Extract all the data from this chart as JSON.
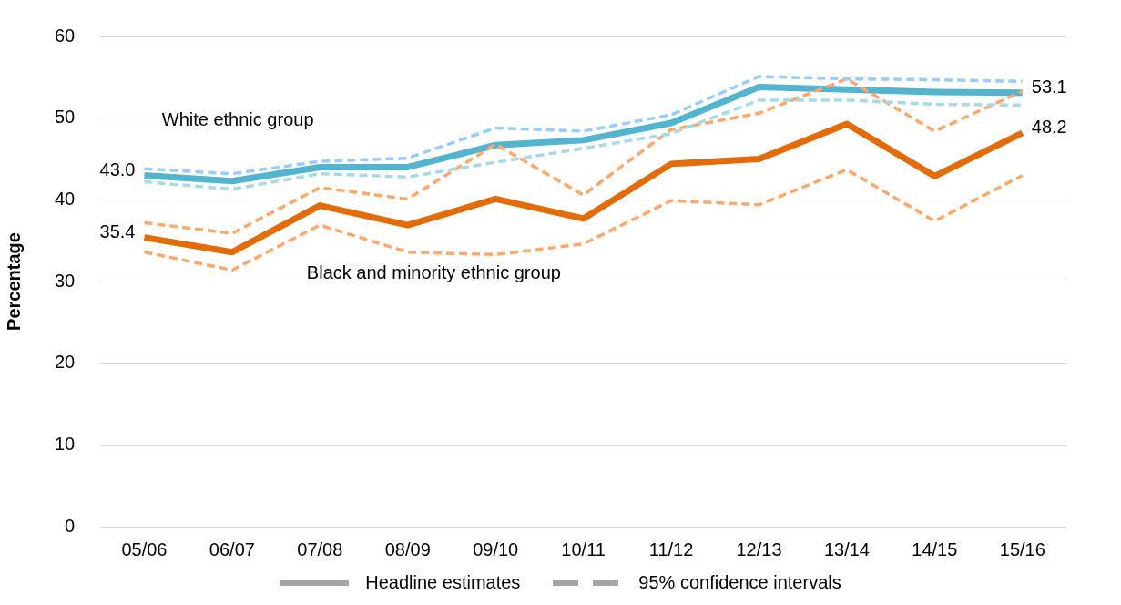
{
  "chart_data": {
    "type": "line",
    "ylabel": "Percentage",
    "categories": [
      "05/06",
      "06/07",
      "07/08",
      "08/09",
      "09/10",
      "10/11",
      "11/12",
      "12/13",
      "13/14",
      "14/15",
      "15/16"
    ],
    "series": [
      {
        "color": "#99ccff",
        "line_style": "dashed",
        "values": [
          43.8,
          43.2,
          44.7,
          45.1,
          48.8,
          48.4,
          50.4,
          55.1,
          54.8,
          54.7,
          54.5
        ]
      },
      {
        "color": "#a8dae6",
        "line_style": "dashed",
        "values": [
          42.2,
          41.3,
          43.2,
          42.8,
          44.6,
          46.3,
          48.1,
          52.2,
          52.2,
          51.7,
          51.6
        ]
      },
      {
        "color": "#ffa86b",
        "line_style": "dashed",
        "values": [
          37.2,
          35.9,
          41.5,
          40.1,
          46.8,
          40.6,
          48.6,
          50.6,
          54.8,
          48.4,
          53.3
        ]
      },
      {
        "color": "#ffa86b",
        "line_style": "dashed",
        "values": [
          33.6,
          31.4,
          36.9,
          33.6,
          33.3,
          34.6,
          39.9,
          39.4,
          43.7,
          37.4,
          43.0
        ]
      },
      {
        "name": "White ethnic group",
        "color": "#53b4d0",
        "line_style": "solid",
        "values": [
          43.0,
          42.3,
          44.0,
          44.0,
          46.7,
          47.3,
          49.4,
          53.8,
          53.5,
          53.2,
          53.1
        ],
        "value_labels": [
          "43.0",
          null,
          null,
          null,
          null,
          null,
          null,
          null,
          null,
          null,
          "53.1"
        ]
      },
      {
        "name": "Black and minority ethnic group",
        "color": "#e36c09",
        "line_style": "solid",
        "values": [
          35.4,
          33.6,
          39.3,
          36.9,
          40.1,
          37.7,
          44.4,
          45.0,
          49.3,
          42.9,
          48.2
        ],
        "value_labels": [
          "35.4",
          null,
          null,
          null,
          null,
          null,
          null,
          null,
          null,
          null,
          "48.2"
        ]
      }
    ],
    "ylim": [
      0,
      60
    ],
    "yticks": [
      0,
      10,
      20,
      30,
      40,
      50,
      60
    ],
    "grid": "y",
    "marker": "none",
    "annotations": [
      "Headline estimates",
      "95% confidence intervals"
    ]
  }
}
